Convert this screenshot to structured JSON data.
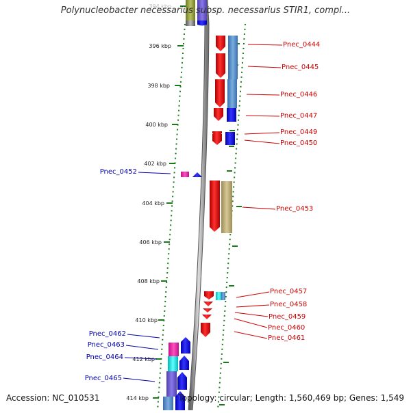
{
  "title": "Polynucleobacter necessarius subsp. necessarius STIR1, compl...",
  "accession": "Accession: NC_010531",
  "info": "Topology: circular; Length: 1,560,469 bp; Genes: 1,549",
  "kbp_labels": [
    "394 kbp",
    "396 kbp",
    "398 kbp",
    "400 kbp",
    "402 kbp",
    "404 kbp",
    "406 kbp",
    "408 kbp",
    "410 kbp",
    "412 kbp",
    "414 kbp"
  ],
  "right_genes": [
    "Pnec_0444",
    "Pnec_0445",
    "Pnec_0446",
    "Pnec_0447",
    "Pnec_0449",
    "Pnec_0450",
    "Pnec_0453",
    "Pnec_0457",
    "Pnec_0458",
    "Pnec_0459",
    "Pnec_0460",
    "Pnec_0461"
  ],
  "left_genes": [
    "Pnec_0452",
    "Pnec_0462",
    "Pnec_0463",
    "Pnec_0464",
    "Pnec_0465"
  ],
  "colors": {
    "red_label": "#cc0000",
    "blue_label": "#0000aa",
    "gene_red": "#ee1111",
    "gene_blue": "#1111ee",
    "gene_steel": "#4f86c6",
    "gene_khaki": "#b8a870",
    "gene_pink": "#e020a0",
    "gene_cyan": "#10e0e0",
    "gene_purple": "#6a55cc",
    "backbone": "#999999",
    "tick_green": "#1a7a1a"
  }
}
